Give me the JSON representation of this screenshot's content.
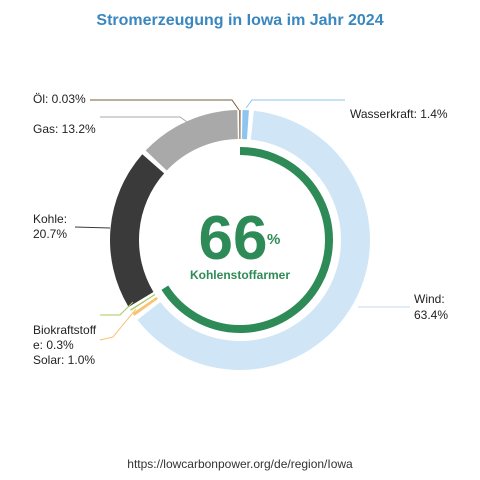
{
  "chart_data": {
    "type": "pie",
    "title": "Stromerzeugung in Iowa im Jahr 2024",
    "slices": [
      {
        "label": "Wasserkraft: 1.4%",
        "value": 1.4,
        "color": "#8ec5ef"
      },
      {
        "label": "Wind: 63.4%",
        "value": 63.4,
        "color": "#d0e6f7"
      },
      {
        "label": "Solar: 1.0%",
        "value": 1.0,
        "color": "#f8c372"
      },
      {
        "label": "Biokraftstoffe: 0.3%",
        "value": 0.3,
        "color": "#a9c95f"
      },
      {
        "label": "Kohle: 20.7%",
        "value": 20.7,
        "color": "#3a3a3a"
      },
      {
        "label": "Gas: 13.2%",
        "value": 13.2,
        "color": "#a9a9a9"
      },
      {
        "label": "Öl: 0.03%",
        "value": 0.03,
        "color": "#7a5c3e"
      }
    ],
    "center": {
      "value": "66",
      "unit": "%",
      "label": "Kohlenstoffarmer",
      "progress": 0.66,
      "color": "#2e8b57"
    },
    "source": "https://lowcarbonpower.org/de/region/Iowa"
  }
}
